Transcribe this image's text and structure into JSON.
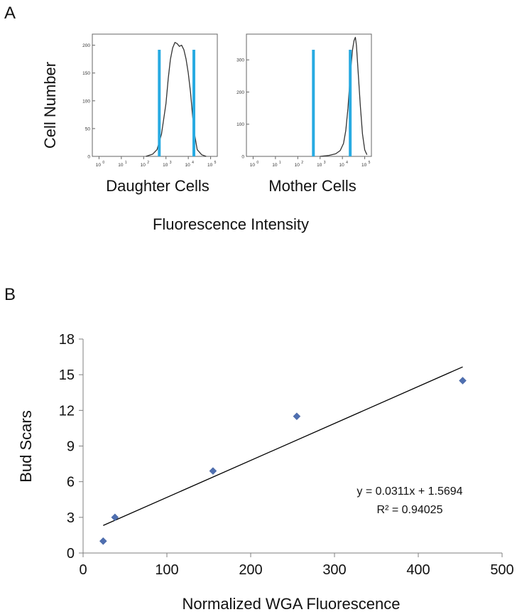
{
  "panel_labels": {
    "a": "A",
    "b": "B"
  },
  "colors": {
    "gate": "#29abe2",
    "curve": "#333333",
    "marker": "#4f6fb0",
    "axis": "#7f7f7f",
    "fit": "#000000"
  },
  "chart_data": [
    {
      "type": "line",
      "panel": "A",
      "title": "Daughter Cells",
      "xlabel": "Fluorescence Intensity",
      "ylabel": "Cell Number",
      "x_scale": "log",
      "x_tick_exponents": [
        0,
        1,
        2,
        3,
        4,
        5
      ],
      "x_tick_base": "10",
      "y_ticks": [
        "0",
        "50",
        "100",
        "150",
        "200"
      ],
      "ylim": [
        0,
        220
      ],
      "gates": [
        2.7,
        4.25
      ],
      "x": [
        2.1,
        2.4,
        2.6,
        2.8,
        3.0,
        3.1,
        3.2,
        3.3,
        3.4,
        3.5,
        3.6,
        3.7,
        3.8,
        3.9,
        4.0,
        4.1,
        4.2,
        4.3,
        4.4,
        4.6,
        4.8
      ],
      "values": [
        0,
        4,
        12,
        40,
        95,
        140,
        175,
        195,
        205,
        203,
        198,
        200,
        192,
        175,
        150,
        115,
        70,
        35,
        12,
        3,
        0
      ]
    },
    {
      "type": "line",
      "panel": "A",
      "title": "Mother Cells",
      "xlabel": "Fluorescence Intensity",
      "ylabel": "Cell Number",
      "x_scale": "log",
      "x_tick_exponents": [
        0,
        1,
        2,
        3,
        4,
        5
      ],
      "x_tick_base": "10",
      "y_ticks": [
        "0",
        "100",
        "200",
        "300"
      ],
      "ylim": [
        0,
        380
      ],
      "gates": [
        2.7,
        4.35
      ],
      "x": [
        3.0,
        3.4,
        3.7,
        3.9,
        4.05,
        4.15,
        4.25,
        4.35,
        4.45,
        4.52,
        4.58,
        4.63,
        4.7,
        4.8,
        4.9,
        5.0,
        5.1
      ],
      "values": [
        0,
        3,
        8,
        18,
        40,
        80,
        150,
        250,
        330,
        360,
        370,
        345,
        270,
        160,
        70,
        20,
        5
      ]
    },
    {
      "type": "scatter",
      "panel": "B",
      "xlabel": "Normalized WGA Fluorescence",
      "ylabel": "Bud Scars",
      "xlim": [
        0,
        500
      ],
      "ylim": [
        0,
        18
      ],
      "x_ticks": [
        "0",
        "100",
        "200",
        "300",
        "400",
        "500"
      ],
      "y_ticks": [
        "0",
        "3",
        "6",
        "9",
        "12",
        "15",
        "18"
      ],
      "x": [
        24,
        38,
        155,
        255,
        453
      ],
      "values": [
        1,
        3,
        6.9,
        11.5,
        14.5
      ],
      "fit": {
        "slope": 0.0311,
        "intercept": 1.5694,
        "x_range": [
          24,
          453
        ]
      },
      "annotation": [
        "y = 0.0311x + 1.5694",
        "R² = 0.94025"
      ]
    }
  ]
}
